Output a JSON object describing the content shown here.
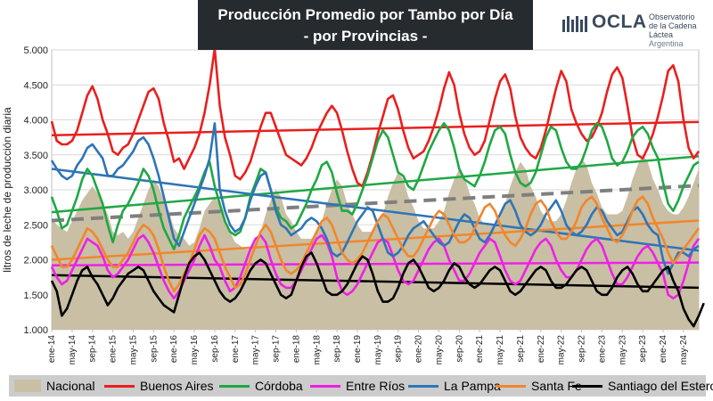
{
  "title": {
    "line1": "Producción Promedio por Tambo por Día",
    "line2": "- por Provincias -"
  },
  "logo": {
    "name": "OCLA",
    "subtitle_lines": [
      "Observatorio",
      "de la Cadena Láctea",
      "Argentina"
    ],
    "icon": "dairy-bars-logo-icon",
    "color": "#3a4a5e"
  },
  "chart_data": {
    "type": "line",
    "title": "Producción Promedio por Tambo por Día - por Provincias -",
    "ylabel": "litros de leche de producción diaria",
    "xlabel": "",
    "ylim": [
      1000,
      5000
    ],
    "ytick_labels": [
      "1.000",
      "1.500",
      "2.000",
      "2.500",
      "3.000",
      "3.500",
      "4.000",
      "4.500",
      "5.000"
    ],
    "xtick_labels": [
      "ene-14",
      "may-14",
      "sep-14",
      "ene-15",
      "may-15",
      "sep-15",
      "ene-16",
      "may-16",
      "sep-16",
      "ene-17",
      "may-17",
      "sep-17",
      "ene-18",
      "may-18",
      "sep-18",
      "ene-19",
      "may-19",
      "sep-19",
      "ene-20",
      "may-20",
      "sep-20",
      "ene-21",
      "may-21",
      "sep-21",
      "ene-22",
      "may-22",
      "sep-22",
      "ene-23",
      "may-23",
      "sep-23",
      "ene-24",
      "may-24"
    ],
    "x_start": "2014-01",
    "x_end": "2024-06",
    "grid": "horizontal",
    "legend_position": "bottom",
    "series": [
      {
        "name": "Nacional",
        "style": "area",
        "color": "#c9bfa4",
        "values": [
          2600,
          2500,
          2450,
          2400,
          2550,
          2700,
          2850,
          2950,
          3050,
          2950,
          2800,
          2650,
          2400,
          2350,
          2400,
          2300,
          2400,
          2600,
          2800,
          3000,
          3150,
          3050,
          2850,
          2700,
          2450,
          2350,
          2300,
          2200,
          2250,
          2450,
          2700,
          2800,
          2900,
          2800,
          2550,
          2400,
          2250,
          2200,
          2150,
          2150,
          2250,
          2400,
          2650,
          2850,
          3000,
          2900,
          2650,
          2550,
          2400,
          2300,
          2300,
          2300,
          2400,
          2550,
          2800,
          3000,
          3150,
          3050,
          2800,
          2650,
          2500,
          2400,
          2400,
          2400,
          2500,
          2650,
          2900,
          3100,
          3250,
          3150,
          2900,
          2750,
          2550,
          2450,
          2450,
          2450,
          2550,
          2700,
          2950,
          3150,
          3300,
          3200,
          2950,
          2800,
          2600,
          2500,
          2500,
          2500,
          2600,
          2800,
          3050,
          3250,
          3400,
          3300,
          3050,
          2900,
          2700,
          2600,
          2550,
          2550,
          2650,
          2850,
          3100,
          3300,
          3450,
          3350,
          3100,
          2950,
          2750,
          2650,
          2650,
          2650,
          2700,
          2900,
          3150,
          3350,
          3500,
          3400,
          3150,
          3000,
          2800,
          2700,
          2650,
          2650,
          2750,
          2900,
          3100,
          3300
        ]
      },
      {
        "name": "Buenos Aires",
        "style": "line",
        "color": "#e8201e",
        "values": [
          3980,
          3700,
          3650,
          3650,
          3700,
          3850,
          4100,
          4350,
          4480,
          4300,
          4000,
          3800,
          3550,
          3500,
          3600,
          3650,
          3800,
          4000,
          4200,
          4400,
          4450,
          4300,
          3950,
          3700,
          3400,
          3450,
          3300,
          3450,
          3600,
          3800,
          4100,
          4500,
          5020,
          4200,
          3750,
          3500,
          3200,
          3150,
          3250,
          3400,
          3650,
          3900,
          4100,
          4100,
          3900,
          3700,
          3500,
          3450,
          3400,
          3350,
          3450,
          3600,
          3800,
          3950,
          4100,
          4200,
          4100,
          3850,
          3550,
          3300,
          3100,
          3050,
          3250,
          3500,
          3800,
          4050,
          4300,
          4350,
          4150,
          3850,
          3600,
          3450,
          3500,
          3550,
          3700,
          3900,
          4150,
          4450,
          4680,
          4500,
          4100,
          3800,
          3600,
          3500,
          3550,
          3700,
          4000,
          4300,
          4550,
          4650,
          4450,
          4050,
          3750,
          3600,
          3500,
          3450,
          3600,
          3850,
          4150,
          4450,
          4700,
          4550,
          4150,
          3950,
          3800,
          3700,
          3750,
          3900,
          4100,
          4400,
          4650,
          4750,
          4600,
          4200,
          3750,
          3500,
          3450,
          3600,
          3800,
          4050,
          4350,
          4700,
          4780,
          4550,
          4000,
          3600,
          3450,
          3550
        ]
      },
      {
        "name": "Córdoba",
        "style": "line",
        "color": "#1fa844",
        "values": [
          2900,
          2700,
          2450,
          2500,
          2700,
          2900,
          3150,
          3300,
          3200,
          3000,
          2800,
          2500,
          2250,
          2500,
          2700,
          2800,
          2950,
          3100,
          3300,
          3200,
          3000,
          2700,
          2450,
          2300,
          2150,
          2350,
          2600,
          2750,
          2900,
          3050,
          3250,
          3400,
          3050,
          2800,
          2550,
          2400,
          2350,
          2400,
          2600,
          2900,
          3100,
          3300,
          3250,
          3000,
          2750,
          2600,
          2550,
          2450,
          2500,
          2650,
          2800,
          3000,
          3150,
          3350,
          3400,
          3250,
          2950,
          2700,
          2700,
          2650,
          2800,
          3000,
          3200,
          3450,
          3700,
          3850,
          3750,
          3500,
          3250,
          3200,
          3050,
          3000,
          3150,
          3350,
          3550,
          3700,
          3850,
          3950,
          3850,
          3600,
          3300,
          3150,
          3100,
          3050,
          3200,
          3400,
          3650,
          3850,
          3900,
          3800,
          3500,
          3250,
          3100,
          3050,
          3100,
          3250,
          3500,
          3750,
          3900,
          3850,
          3600,
          3400,
          3300,
          3300,
          3400,
          3600,
          3850,
          3950,
          3900,
          3700,
          3450,
          3350,
          3400,
          3550,
          3750,
          3850,
          3900,
          3800,
          3600,
          3450,
          3100,
          2800,
          2700,
          2850,
          3050,
          3200,
          3350,
          3400
        ]
      },
      {
        "name": "Entre Ríos",
        "style": "line",
        "color": "#ee20e6",
        "values": [
          1900,
          1750,
          1650,
          1700,
          1850,
          2000,
          2150,
          2300,
          2250,
          2200,
          2050,
          1850,
          1750,
          1800,
          1900,
          2000,
          2150,
          2300,
          2350,
          2250,
          2100,
          1900,
          1700,
          1550,
          1450,
          1550,
          1700,
          1850,
          2000,
          2200,
          2350,
          2200,
          2000,
          1900,
          1700,
          1550,
          1600,
          1750,
          1950,
          2150,
          2300,
          2350,
          2250,
          2000,
          1800,
          1650,
          1600,
          1600,
          1700,
          1850,
          2000,
          2150,
          2300,
          2350,
          2250,
          2050,
          1750,
          1550,
          1500,
          1550,
          1650,
          1800,
          1950,
          2100,
          2250,
          2300,
          2250,
          2050,
          1850,
          1700,
          1650,
          1700,
          1850,
          2000,
          2150,
          2250,
          2300,
          2200,
          2000,
          1850,
          1700,
          1700,
          1800,
          1950,
          2100,
          2200,
          2300,
          2250,
          2050,
          1850,
          1700,
          1650,
          1700,
          1850,
          2000,
          2150,
          2250,
          2300,
          2200,
          2000,
          1850,
          1750,
          1750,
          1850,
          2000,
          2150,
          2250,
          2300,
          2200,
          2000,
          1800,
          1650,
          1650,
          1750,
          1900,
          2050,
          2150,
          2200,
          2100,
          1950,
          1800,
          1500,
          1450,
          1500,
          1700,
          1950,
          2200,
          2300
        ]
      },
      {
        "name": "La Pampa",
        "style": "line",
        "color": "#2e75b6",
        "values": [
          3420,
          3300,
          3200,
          3150,
          3200,
          3350,
          3450,
          3600,
          3650,
          3550,
          3450,
          3200,
          3200,
          3300,
          3350,
          3450,
          3550,
          3700,
          3750,
          3650,
          3450,
          3200,
          2900,
          2600,
          2300,
          2200,
          2400,
          2600,
          2800,
          3000,
          3200,
          3450,
          3950,
          3000,
          2700,
          2500,
          2400,
          2450,
          2600,
          2850,
          3050,
          3200,
          3250,
          3000,
          2700,
          2500,
          2450,
          2350,
          2400,
          2450,
          2550,
          2600,
          2550,
          2450,
          2300,
          2100,
          2050,
          2100,
          2250,
          2400,
          2550,
          2650,
          2750,
          2700,
          2500,
          2300,
          2100,
          2050,
          2100,
          2200,
          2350,
          2450,
          2500,
          2550,
          2450,
          2350,
          2250,
          2200,
          2250,
          2400,
          2550,
          2650,
          2600,
          2450,
          2300,
          2250,
          2350,
          2500,
          2650,
          2800,
          2850,
          2700,
          2500,
          2400,
          2350,
          2400,
          2500,
          2650,
          2750,
          2850,
          2700,
          2500,
          2400,
          2350,
          2400,
          2500,
          2650,
          2750,
          2700,
          2550,
          2450,
          2350,
          2400,
          2550,
          2700,
          2750,
          2650,
          2500,
          2400,
          2350,
          2000,
          1800,
          1950,
          2100,
          2100,
          2050,
          2150,
          2200
        ]
      },
      {
        "name": "Santa Fe",
        "style": "line",
        "color": "#f2862c",
        "values": [
          2200,
          2050,
          1900,
          1900,
          2000,
          2150,
          2300,
          2450,
          2400,
          2300,
          2150,
          2000,
          1900,
          1900,
          2000,
          2100,
          2250,
          2400,
          2500,
          2450,
          2350,
          2150,
          1900,
          1700,
          1550,
          1650,
          1800,
          1950,
          2150,
          2350,
          2450,
          2400,
          2300,
          2100,
          1900,
          1750,
          1600,
          1650,
          1800,
          2000,
          2200,
          2400,
          2500,
          2400,
          2200,
          2000,
          1850,
          1800,
          1850,
          1950,
          2100,
          2250,
          2400,
          2550,
          2600,
          2500,
          2300,
          2100,
          2000,
          1950,
          2000,
          2100,
          2250,
          2400,
          2550,
          2650,
          2600,
          2450,
          2300,
          2150,
          2050,
          2050,
          2150,
          2300,
          2450,
          2600,
          2700,
          2650,
          2500,
          2350,
          2250,
          2250,
          2300,
          2450,
          2600,
          2750,
          2800,
          2700,
          2500,
          2350,
          2250,
          2200,
          2300,
          2450,
          2650,
          2800,
          2850,
          2750,
          2550,
          2400,
          2300,
          2300,
          2400,
          2550,
          2750,
          2850,
          2900,
          2800,
          2600,
          2450,
          2300,
          2250,
          2350,
          2500,
          2700,
          2850,
          2900,
          2800,
          2600,
          2450,
          2300,
          2100,
          1950,
          2050,
          2150,
          2250,
          2350,
          2450
        ]
      },
      {
        "name": "Santiago del Estero",
        "style": "line",
        "color": "#000000",
        "values": [
          1700,
          1550,
          1200,
          1300,
          1500,
          1700,
          1850,
          1900,
          1750,
          1650,
          1500,
          1350,
          1450,
          1600,
          1700,
          1800,
          1850,
          1900,
          1850,
          1700,
          1550,
          1450,
          1350,
          1300,
          1250,
          1500,
          1750,
          1950,
          2050,
          2100,
          2000,
          1850,
          1700,
          1550,
          1450,
          1400,
          1450,
          1550,
          1700,
          1850,
          1950,
          2000,
          1950,
          1800,
          1650,
          1500,
          1450,
          1500,
          1700,
          1900,
          2050,
          2100,
          1950,
          1750,
          1550,
          1500,
          1500,
          1550,
          1650,
          1800,
          1950,
          2050,
          2000,
          1800,
          1550,
          1400,
          1400,
          1450,
          1600,
          1800,
          1950,
          2000,
          1900,
          1750,
          1600,
          1550,
          1600,
          1700,
          1850,
          1950,
          1900,
          1750,
          1650,
          1600,
          1650,
          1750,
          1850,
          1900,
          1850,
          1700,
          1550,
          1500,
          1550,
          1650,
          1750,
          1850,
          1900,
          1850,
          1700,
          1600,
          1600,
          1650,
          1750,
          1850,
          1900,
          1850,
          1700,
          1550,
          1500,
          1500,
          1600,
          1750,
          1850,
          1900,
          1800,
          1650,
          1550,
          1550,
          1650,
          1750,
          1850,
          1900,
          1700,
          1550,
          1300,
          1150,
          1050,
          1200,
          1380
        ]
      }
    ],
    "trendlines": [
      {
        "series": "Nacional",
        "color": "#7f7f7f",
        "style": "dashed",
        "start": 2560,
        "end": 3060
      },
      {
        "series": "Buenos Aires",
        "color": "#e8201e",
        "style": "solid",
        "start": 3780,
        "end": 3970
      },
      {
        "series": "Córdoba",
        "color": "#1fa844",
        "style": "solid",
        "start": 2680,
        "end": 3480
      },
      {
        "series": "Entre Ríos",
        "color": "#ee20e6",
        "style": "solid",
        "start": 1920,
        "end": 1960
      },
      {
        "series": "La Pampa",
        "color": "#2e75b6",
        "style": "solid",
        "start": 3300,
        "end": 2130
      },
      {
        "series": "Santa Fe",
        "color": "#f2862c",
        "style": "solid",
        "start": 2000,
        "end": 2560
      },
      {
        "series": "Santiago del Estero",
        "color": "#000000",
        "style": "solid",
        "start": 1780,
        "end": 1600
      }
    ]
  }
}
